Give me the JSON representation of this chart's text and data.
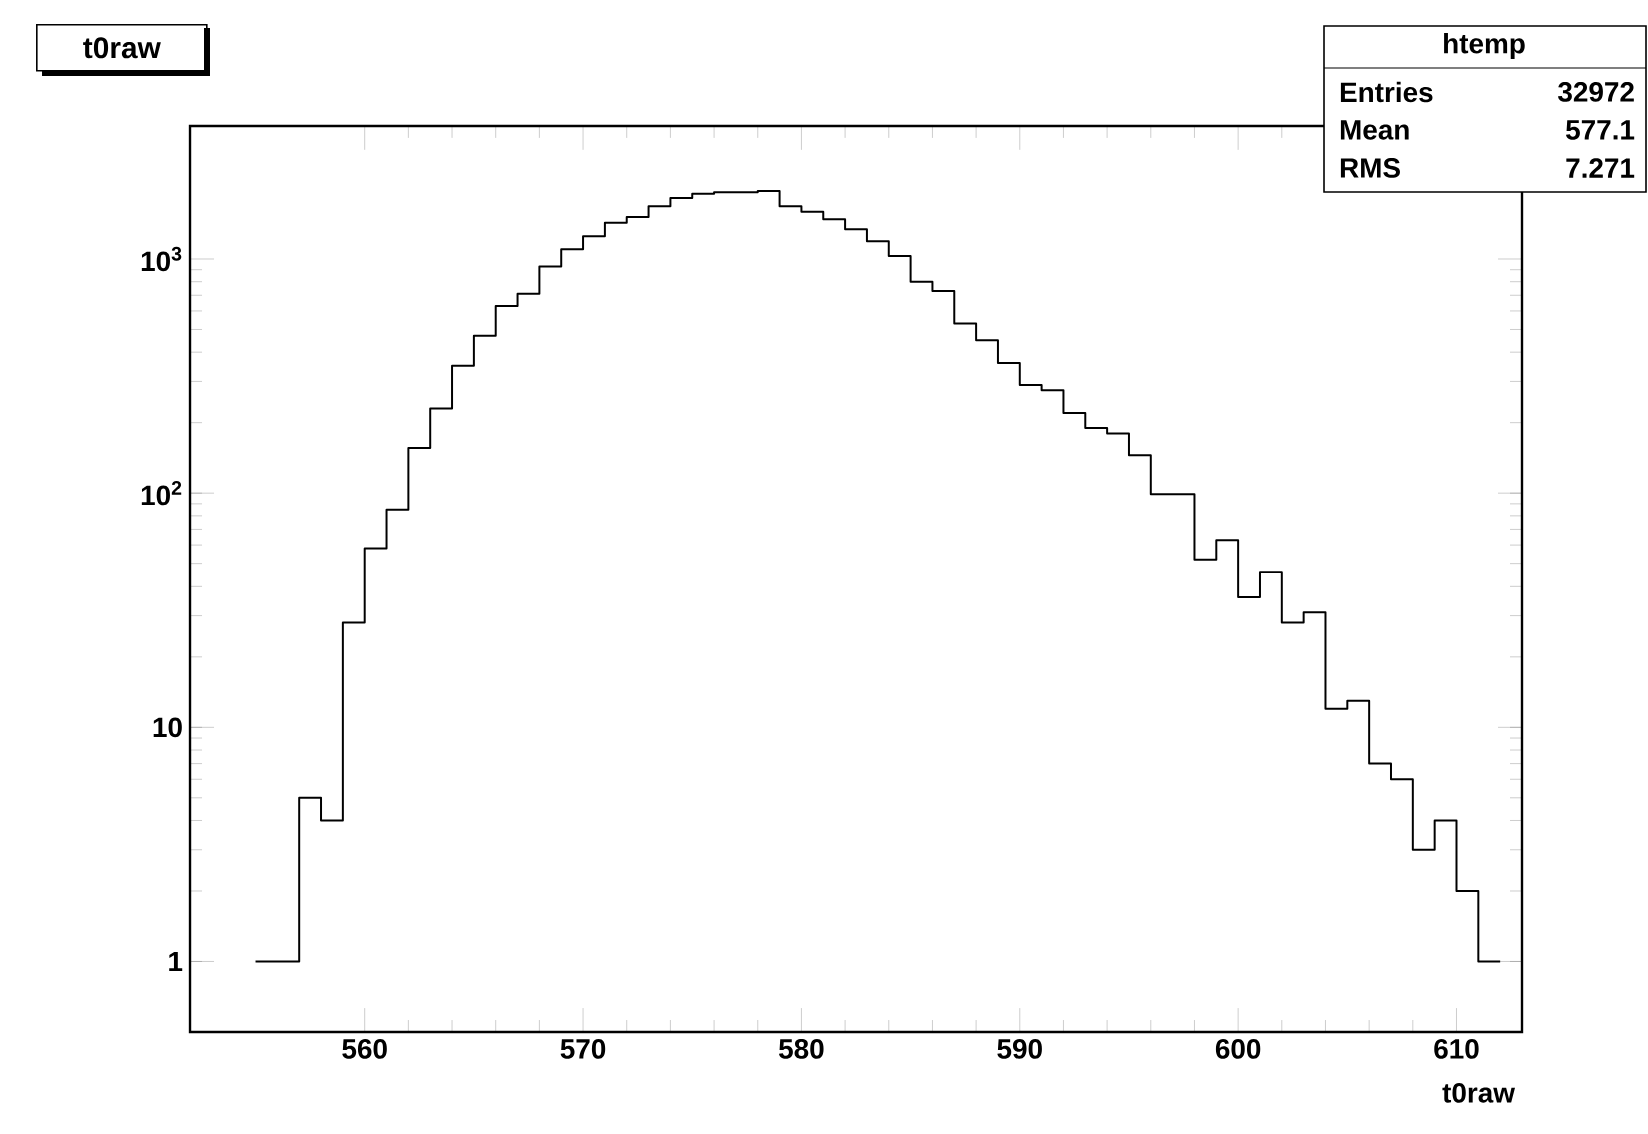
{
  "chart_data": {
    "type": "histogram",
    "title": "t0raw",
    "xlabel": "t0raw",
    "annotations": [
      "htemp",
      "Entries",
      "32972",
      "Mean",
      "577.1",
      "RMS",
      "7.271"
    ],
    "bins": [
      555,
      556,
      557,
      558,
      559,
      560,
      561,
      562,
      563,
      564,
      565,
      566,
      567,
      568,
      569,
      570,
      571,
      572,
      573,
      574,
      575,
      576,
      577,
      578,
      579,
      580,
      581,
      582,
      583,
      584,
      585,
      586,
      587,
      588,
      589,
      590,
      591,
      592,
      593,
      594,
      595,
      596,
      597,
      598,
      599,
      600,
      601,
      602,
      603,
      604,
      605,
      606,
      607,
      608,
      609,
      610,
      611,
      612
    ],
    "values": [
      1,
      1,
      5,
      4,
      28,
      58,
      85,
      156,
      230,
      350,
      470,
      630,
      710,
      930,
      1100,
      1250,
      1430,
      1510,
      1680,
      1820,
      1900,
      1930,
      1930,
      1950,
      1680,
      1590,
      1480,
      1340,
      1190,
      1030,
      800,
      730,
      530,
      450,
      360,
      290,
      275,
      220,
      190,
      180,
      145,
      99,
      99,
      52,
      63,
      36,
      46,
      28,
      31,
      12,
      13,
      7,
      6,
      3,
      4,
      2,
      1
    ],
    "color": "#000000",
    "log": "y",
    "xlim": [
      552,
      613
    ],
    "ylim": [
      0.5,
      3700
    ],
    "xticks": [
      560,
      570,
      580,
      590,
      600,
      610
    ],
    "yticks": [
      1,
      10,
      {
        "value": 100,
        "label": "10$^{2}$"
      },
      {
        "value": 1000,
        "label": "10$^{3}$"
      }
    ]
  }
}
